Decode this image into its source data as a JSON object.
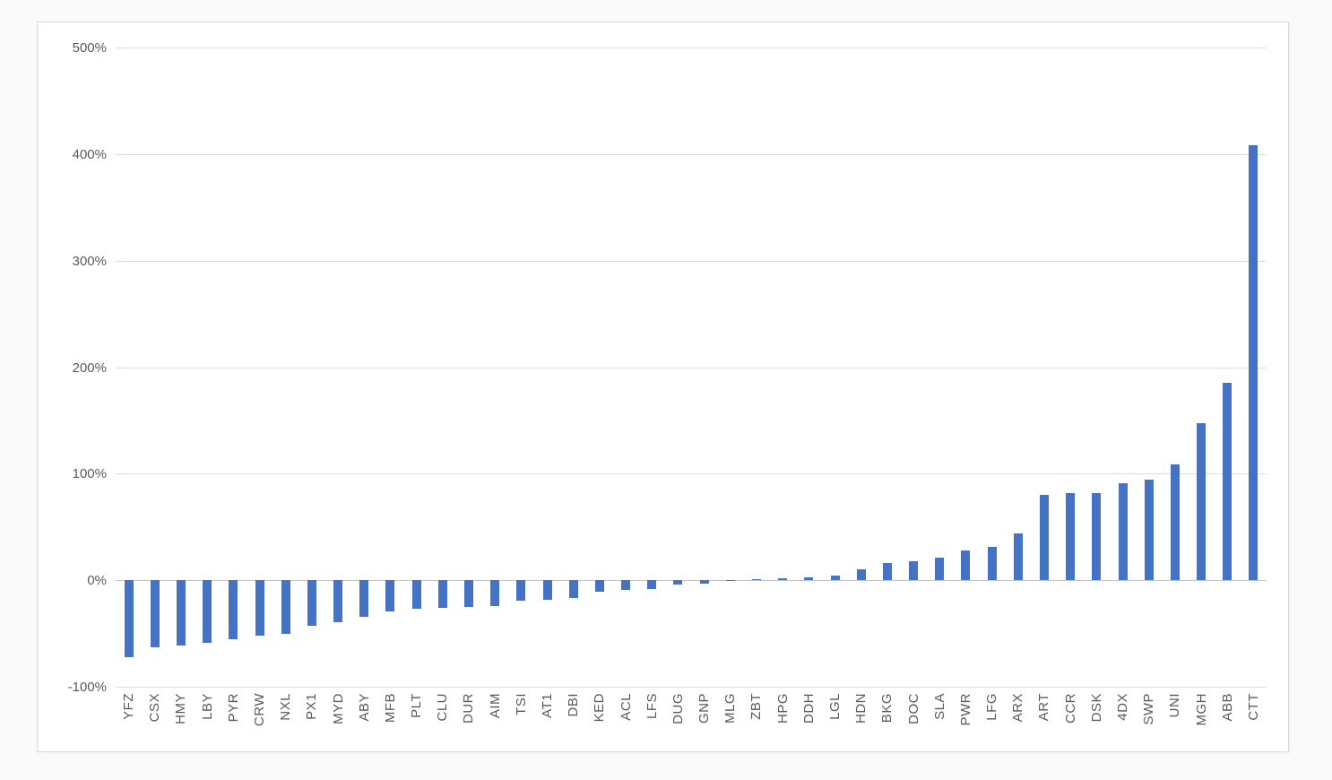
{
  "page": {
    "background_color": "#fafafa",
    "chart_background_color": "#ffffff",
    "chart_border_color": "#d9d9d9"
  },
  "chart_data": {
    "type": "bar",
    "title": "",
    "xlabel": "",
    "ylabel": "",
    "categories": [
      "YFZ",
      "CSX",
      "HMY",
      "LBY",
      "PYR",
      "CRW",
      "NXL",
      "PX1",
      "MYD",
      "ABY",
      "MFB",
      "PLT",
      "CLU",
      "DUR",
      "AIM",
      "TSI",
      "AT1",
      "DBI",
      "KED",
      "ACL",
      "LFS",
      "DUG",
      "GNP",
      "MLG",
      "ZBT",
      "HPG",
      "DDH",
      "LGL",
      "HDN",
      "BKG",
      "DOC",
      "SLA",
      "PWR",
      "LFG",
      "ARX",
      "ART",
      "CCR",
      "DSK",
      "4DX",
      "SWP",
      "UNI",
      "MGH",
      "ABB",
      "CTT"
    ],
    "values": [
      -72,
      -63,
      -61,
      -59,
      -55,
      -52,
      -50,
      -43,
      -39,
      -34,
      -29,
      -27,
      -26,
      -25,
      -24,
      -19,
      -18,
      -17,
      -11,
      -9,
      -8,
      -4,
      -3,
      -1,
      1,
      2,
      3,
      4,
      10,
      16,
      18,
      21,
      28,
      31,
      44,
      80,
      82,
      82,
      91,
      94,
      109,
      147,
      185,
      408
    ],
    "value_unit": "percent",
    "ylim": [
      -100,
      500
    ],
    "yticks": [
      {
        "label": "500%",
        "value": 500
      },
      {
        "label": "400%",
        "value": 400
      },
      {
        "label": "300%",
        "value": 300
      },
      {
        "label": "200%",
        "value": 200
      },
      {
        "label": "100%",
        "value": 100
      },
      {
        "label": "0%",
        "value": 0
      },
      {
        "label": "-100%",
        "value": -100
      }
    ],
    "grid": true,
    "legend": false,
    "x_label_rotation": "vertical-bottom-to-top",
    "bar_color": "#4472c4",
    "gridline_color": "#dcdcdc",
    "zero_line_color": "#c3c3c3",
    "tick_label_color": "#595959"
  }
}
